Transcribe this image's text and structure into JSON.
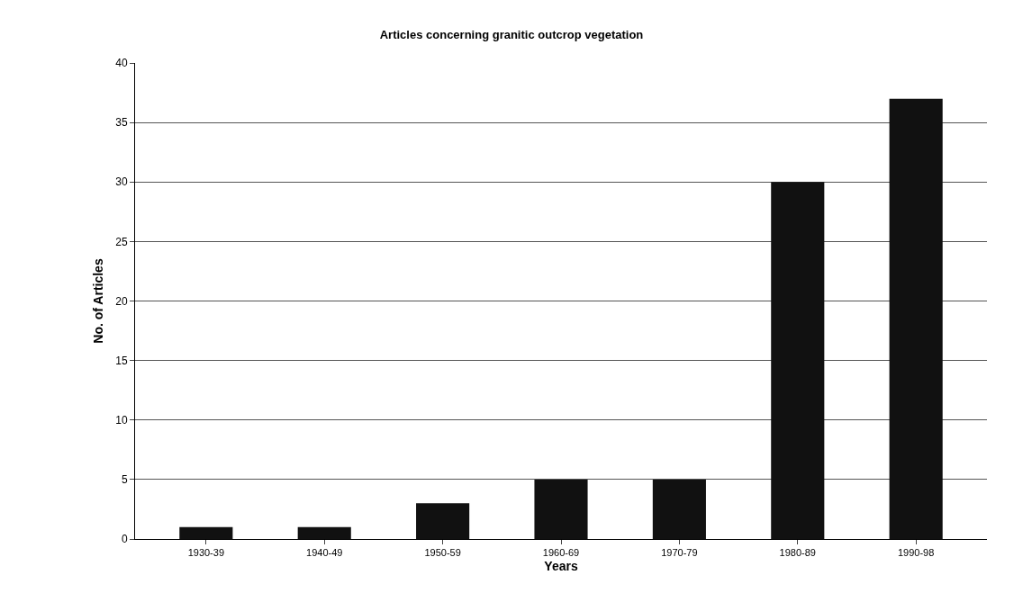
{
  "chart_data": {
    "type": "bar",
    "title": "Articles concerning granitic outcrop vegetation",
    "xlabel": "Years",
    "ylabel": "No. of Articles",
    "categories": [
      "1930-39",
      "1940-49",
      "1950-59",
      "1960-69",
      "1970-79",
      "1980-89",
      "1990-98"
    ],
    "values": [
      1,
      1,
      3,
      5,
      5,
      30,
      37
    ],
    "color": "#111111",
    "ylim": [
      0,
      40
    ],
    "yticks": [
      0,
      5,
      10,
      15,
      20,
      25,
      30,
      35,
      40
    ],
    "grid": "y",
    "legend": false
  }
}
